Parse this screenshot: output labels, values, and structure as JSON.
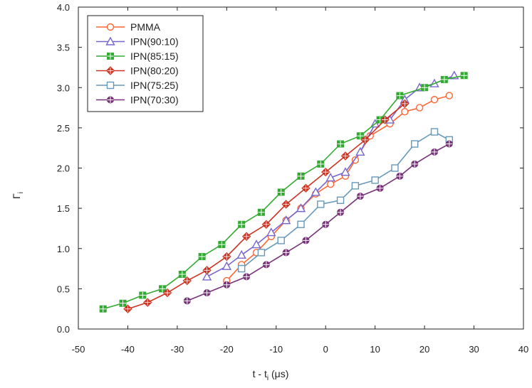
{
  "chart_data": {
    "type": "line",
    "title": "",
    "xlabel": "t - t",
    "xlabel_sub": "i",
    "xlabel_unit": "(μs)",
    "ylabel": "Γ",
    "ylabel_sub": "i",
    "xlim": [
      -50,
      40
    ],
    "ylim": [
      0,
      4
    ],
    "x_ticks": [
      "-50",
      "-40",
      "-30",
      "-20",
      "-10",
      "0",
      "10",
      "20",
      "30",
      "40"
    ],
    "y_ticks": [
      "0.0",
      "0.5",
      "1.0",
      "1.5",
      "2.0",
      "2.5",
      "3.0",
      "3.5",
      "4.0"
    ],
    "grid": false,
    "legend_position": "top-left",
    "series": [
      {
        "name": "PMMA",
        "color": "#ff6633",
        "marker": "circle",
        "x": [
          -20,
          -17,
          -14,
          -11,
          -8,
          -5,
          -2,
          1,
          4,
          6,
          9,
          13,
          16,
          19,
          22,
          25
        ],
        "y": [
          0.6,
          0.8,
          0.95,
          1.15,
          1.35,
          1.5,
          1.68,
          1.8,
          1.9,
          2.1,
          2.4,
          2.55,
          2.7,
          2.75,
          2.85,
          2.9
        ]
      },
      {
        "name": "IPN(90:10)",
        "color": "#7766cc",
        "marker": "triangle",
        "x": [
          -24,
          -20,
          -17,
          -14,
          -11,
          -8,
          -5,
          -2,
          1,
          4,
          7,
          10,
          13,
          16,
          19,
          22,
          26
        ],
        "y": [
          0.65,
          0.78,
          0.92,
          1.05,
          1.2,
          1.35,
          1.5,
          1.7,
          1.88,
          1.95,
          2.2,
          2.55,
          2.6,
          2.85,
          3.0,
          3.05,
          3.15
        ]
      },
      {
        "name": "IPN(85:15)",
        "color": "#33aa33",
        "marker": "square-cross",
        "x": [
          -45,
          -41,
          -37,
          -33,
          -29,
          -25,
          -21,
          -17,
          -13,
          -9,
          -5,
          -1,
          3,
          7,
          11,
          15,
          20,
          24,
          28
        ],
        "y": [
          0.25,
          0.32,
          0.42,
          0.5,
          0.68,
          0.9,
          1.05,
          1.3,
          1.45,
          1.7,
          1.9,
          2.05,
          2.3,
          2.4,
          2.6,
          2.9,
          3.0,
          3.1,
          3.15
        ]
      },
      {
        "name": "IPN(80:20)",
        "color": "#cc3322",
        "marker": "diamond",
        "x": [
          -40,
          -36,
          -32,
          -28,
          -24,
          -20,
          -16,
          -12,
          -8,
          -4,
          0,
          4,
          8,
          12,
          16
        ],
        "y": [
          0.25,
          0.33,
          0.45,
          0.6,
          0.73,
          0.9,
          1.15,
          1.3,
          1.55,
          1.75,
          1.95,
          2.15,
          2.35,
          2.6,
          2.8
        ]
      },
      {
        "name": "IPN(75:25)",
        "color": "#6699bb",
        "marker": "square",
        "x": [
          -17,
          -13,
          -9,
          -5,
          -1,
          3,
          6,
          10,
          14,
          18,
          22,
          25
        ],
        "y": [
          0.75,
          0.95,
          1.1,
          1.3,
          1.55,
          1.6,
          1.78,
          1.85,
          2.0,
          2.3,
          2.45,
          2.35
        ]
      },
      {
        "name": "IPN(70:30)",
        "color": "#773377",
        "marker": "circle-cross",
        "x": [
          -28,
          -24,
          -20,
          -16,
          -12,
          -8,
          -4,
          0,
          3,
          7,
          11,
          15,
          18,
          22,
          25
        ],
        "y": [
          0.35,
          0.45,
          0.55,
          0.65,
          0.8,
          0.95,
          1.1,
          1.3,
          1.45,
          1.65,
          1.75,
          1.9,
          2.05,
          2.2,
          2.3
        ]
      }
    ]
  }
}
